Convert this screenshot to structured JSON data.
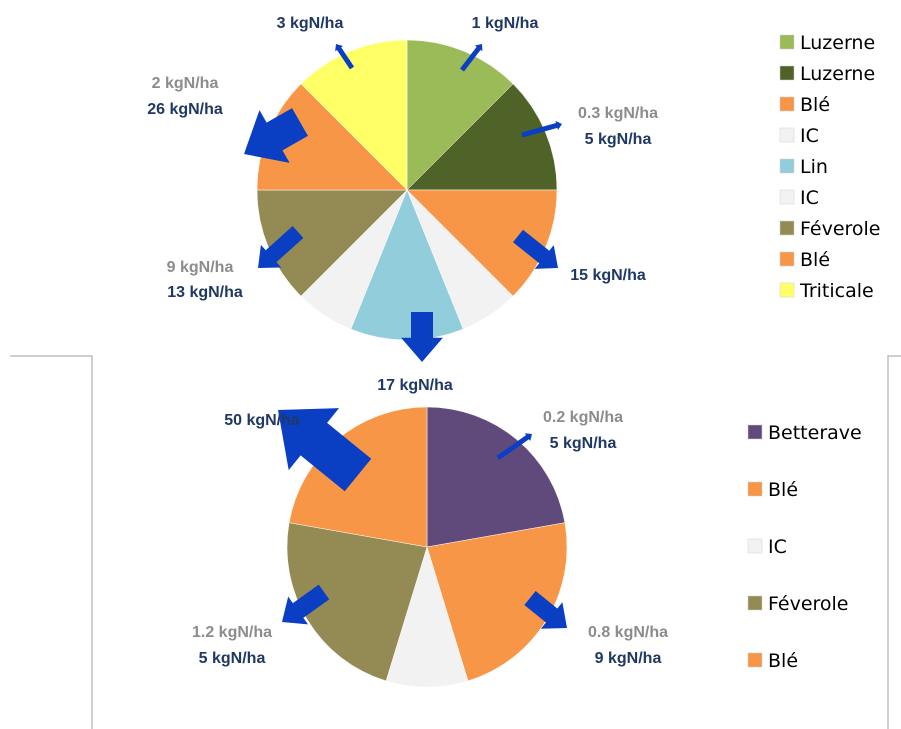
{
  "top_wheel": {
    "legend": [
      "Luzerne",
      "Luzerne",
      "Blé",
      "IC",
      "Lin",
      "IC",
      "Féverole",
      "Blé",
      "Triticale"
    ],
    "annotations": [
      "3 kgN/ha",
      "1 kgN/ha",
      "2 kgN/ha",
      "26 kgN/ha",
      "0.3 kgN/ha",
      "5 kgN/ha",
      "9 kgN/ha",
      "13 kgN/ha",
      "15 kgN/ha",
      "17 kgN/ha"
    ]
  },
  "bottom_wheel": {
    "legend": [
      "Betterave",
      "Blé",
      "IC",
      "Féverole",
      "Blé"
    ],
    "annotations": [
      "50 kgN/ha",
      "0.2 kgN/ha",
      "5 kgN/ha",
      "1.2 kgN/ha",
      "5 kgN/ha",
      "0.8 kgN/ha",
      "9 kgN/ha"
    ]
  }
}
